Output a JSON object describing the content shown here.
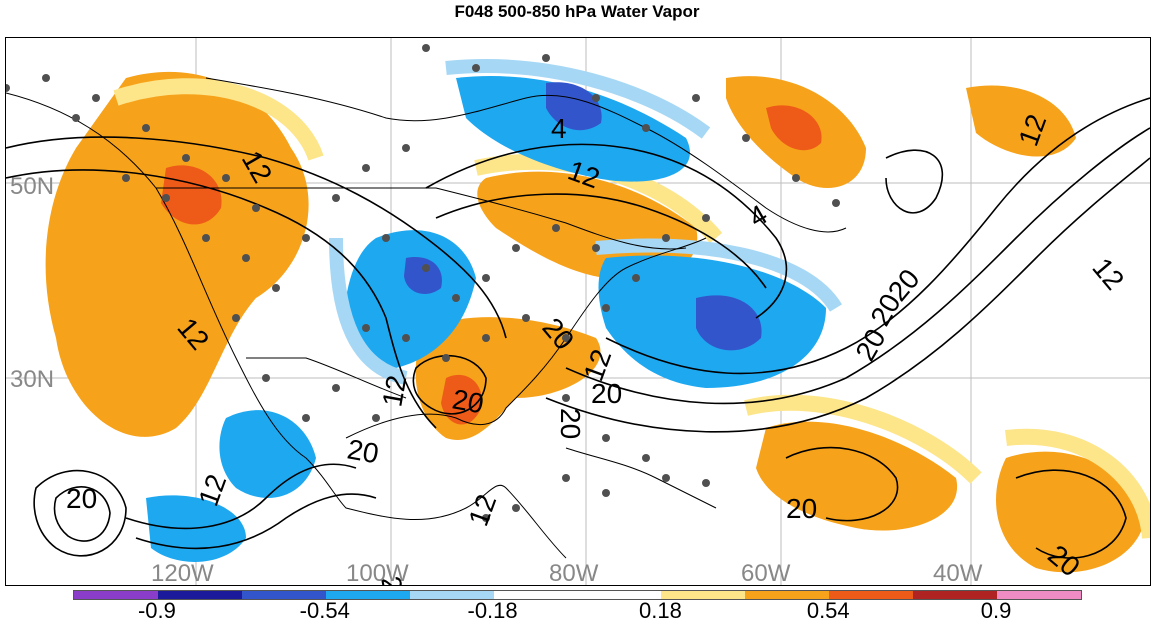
{
  "title": "F048 500-850 hPa Water Vapor",
  "map": {
    "lat_labels": [
      "50N",
      "30N"
    ],
    "lon_labels": [
      "120W",
      "100W",
      "80W",
      "60W",
      "40W"
    ],
    "contour_labels": [
      "12",
      "12",
      "12",
      "4",
      "12",
      "4",
      "12",
      "20",
      "20",
      "12",
      "12",
      "20",
      "20",
      "20",
      "20",
      "12",
      "20",
      "20",
      "20",
      "20",
      "12",
      "20",
      "20"
    ],
    "label_color": "#888888",
    "contour_color": "#000000"
  },
  "colorbar": {
    "colors": [
      "#8a3dc8",
      "#1a1a9a",
      "#3355cc",
      "#1ea8f0",
      "#a6d8f5",
      "#ffffff",
      "#ffffff",
      "#fde58a",
      "#f6a21a",
      "#ee5a18",
      "#b02323",
      "#f08cc4"
    ],
    "tick_labels": [
      "-0.9",
      "-0.54",
      "-0.18",
      "0.18",
      "0.54",
      "0.9"
    ],
    "tick_values": [
      -0.9,
      -0.54,
      -0.18,
      0.18,
      0.54,
      0.9
    ],
    "range": [
      -1.08,
      1.08
    ]
  }
}
